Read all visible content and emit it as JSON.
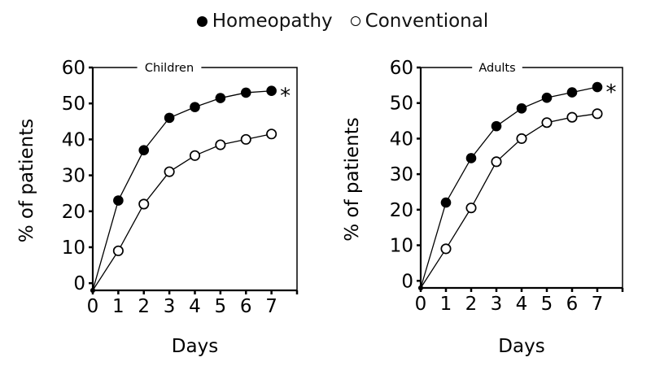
{
  "figure": {
    "background_color": "#ffffff",
    "ink_color": "#000000"
  },
  "legend": {
    "items": [
      {
        "label": "Homeopathy",
        "marker": "filled-circle"
      },
      {
        "label": "Conventional",
        "marker": "open-circle"
      }
    ]
  },
  "chart_data": [
    {
      "type": "line",
      "title": "Children",
      "xlabel": "Days",
      "ylabel": "% of patients",
      "x": [
        0,
        1,
        2,
        3,
        4,
        5,
        6,
        7
      ],
      "xtick_labels": [
        "0",
        "1",
        "2",
        "3",
        "4",
        "5",
        "6",
        "7"
      ],
      "xlim": [
        0,
        8
      ],
      "ylim": [
        0,
        60
      ],
      "yticks": [
        0,
        10,
        20,
        30,
        40,
        50,
        60
      ],
      "series": [
        {
          "name": "Homeopathy",
          "marker": "filled-circle",
          "color": "#000000",
          "values": [
            0,
            23,
            37,
            46,
            49,
            51.5,
            53,
            53.5
          ]
        },
        {
          "name": "Conventional",
          "marker": "open-circle",
          "color": "#000000",
          "values": [
            0,
            9,
            22,
            31,
            35.5,
            38.5,
            40,
            41.5
          ]
        }
      ],
      "annotation": {
        "text": "*",
        "attached_to": "Homeopathy last point"
      },
      "layout_hints": {
        "grid": false,
        "boxed": true,
        "curves_start_at_axis_corner": true,
        "baseline_units_below_zero": 2,
        "legend_position": "top-center-shared"
      }
    },
    {
      "type": "line",
      "title": "Adults",
      "xlabel": "Days",
      "ylabel": "% of patients",
      "x": [
        0,
        1,
        2,
        3,
        4,
        5,
        6,
        7
      ],
      "xtick_labels": [
        "0",
        "1",
        "2",
        "3",
        "4",
        "5",
        "6",
        "7"
      ],
      "xlim": [
        0,
        8
      ],
      "ylim": [
        0,
        60
      ],
      "yticks": [
        0,
        10,
        20,
        30,
        40,
        50,
        60
      ],
      "series": [
        {
          "name": "Homeopathy",
          "marker": "filled-circle",
          "color": "#000000",
          "values": [
            0,
            22,
            34.5,
            43.5,
            48.5,
            51.5,
            53,
            54.5
          ]
        },
        {
          "name": "Conventional",
          "marker": "open-circle",
          "color": "#000000",
          "values": [
            0,
            9,
            20.5,
            33.5,
            40,
            44.5,
            46,
            47
          ]
        }
      ],
      "annotation": {
        "text": "*",
        "attached_to": "Homeopathy last point"
      },
      "layout_hints": {
        "grid": false,
        "boxed": true,
        "curves_start_at_axis_corner": true,
        "baseline_units_below_zero": 2,
        "legend_position": "top-center-shared"
      }
    }
  ]
}
